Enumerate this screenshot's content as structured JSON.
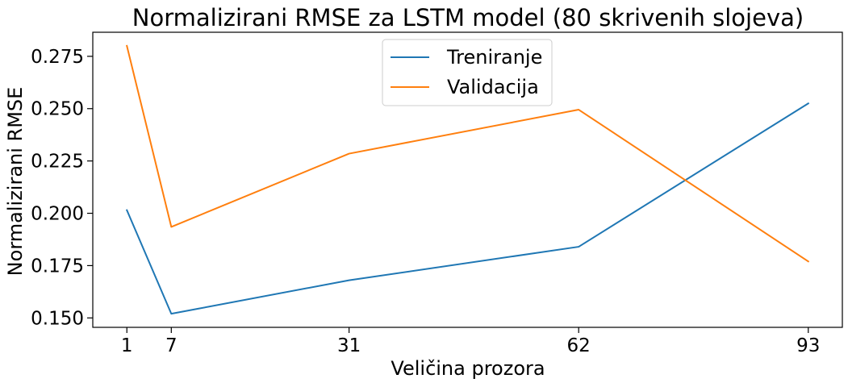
{
  "chart_data": {
    "type": "line",
    "title": "Normalizirani RMSE za LSTM model (80 skrivenih slojeva)",
    "xlabel": "Veličina prozora",
    "ylabel": "Normalizirani RMSE",
    "x": [
      1,
      7,
      31,
      62,
      93
    ],
    "x_ticks": [
      1,
      7,
      31,
      62,
      93
    ],
    "xlim": [
      -3.6,
      97.6
    ],
    "y_ticks": [
      0.15,
      0.175,
      0.2,
      0.225,
      0.25,
      0.275
    ],
    "y_tick_labels": [
      "0.150",
      "0.175",
      "0.200",
      "0.225",
      "0.250",
      "0.275"
    ],
    "ylim": [
      0.1455,
      0.2865
    ],
    "grid": false,
    "legend_position": "top-center",
    "series": [
      {
        "name": "Treniranje",
        "color": "#1f77b4",
        "values": [
          0.2015,
          0.152,
          0.168,
          0.184,
          0.2525
        ]
      },
      {
        "name": "Validacija",
        "color": "#ff7f0e",
        "values": [
          0.28,
          0.1935,
          0.2285,
          0.2495,
          0.177
        ]
      }
    ]
  }
}
